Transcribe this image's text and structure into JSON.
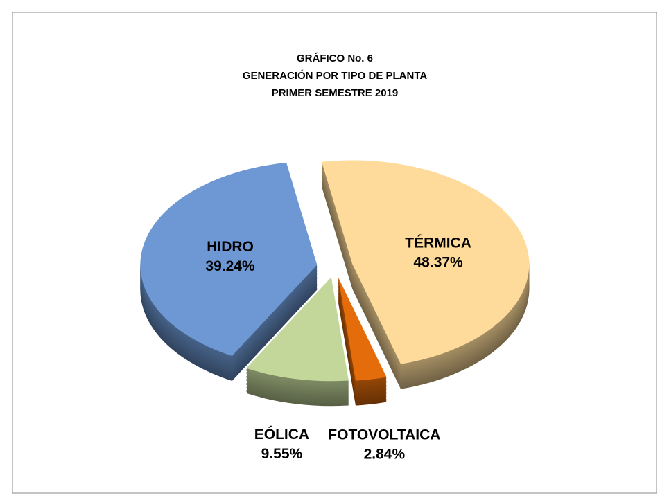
{
  "chart_data": {
    "type": "pie3d",
    "title": [
      "GRÁFICO No. 6",
      "GENERACIÓN   POR TIPO DE PLANTA",
      "PRIMER  SEMESTRE  2019"
    ],
    "categories": [
      "TÉRMICA",
      "FOTOVOLTAICA",
      "EÓLICA",
      "HIDRO"
    ],
    "values": [
      48.37,
      2.84,
      9.55,
      39.24
    ],
    "value_labels": [
      "48.37%",
      "2.84%",
      "9.55%",
      "39.24%"
    ],
    "colors": [
      "#fedb9a",
      "#e46c0a",
      "#c4d79b",
      "#6d98d3"
    ]
  }
}
